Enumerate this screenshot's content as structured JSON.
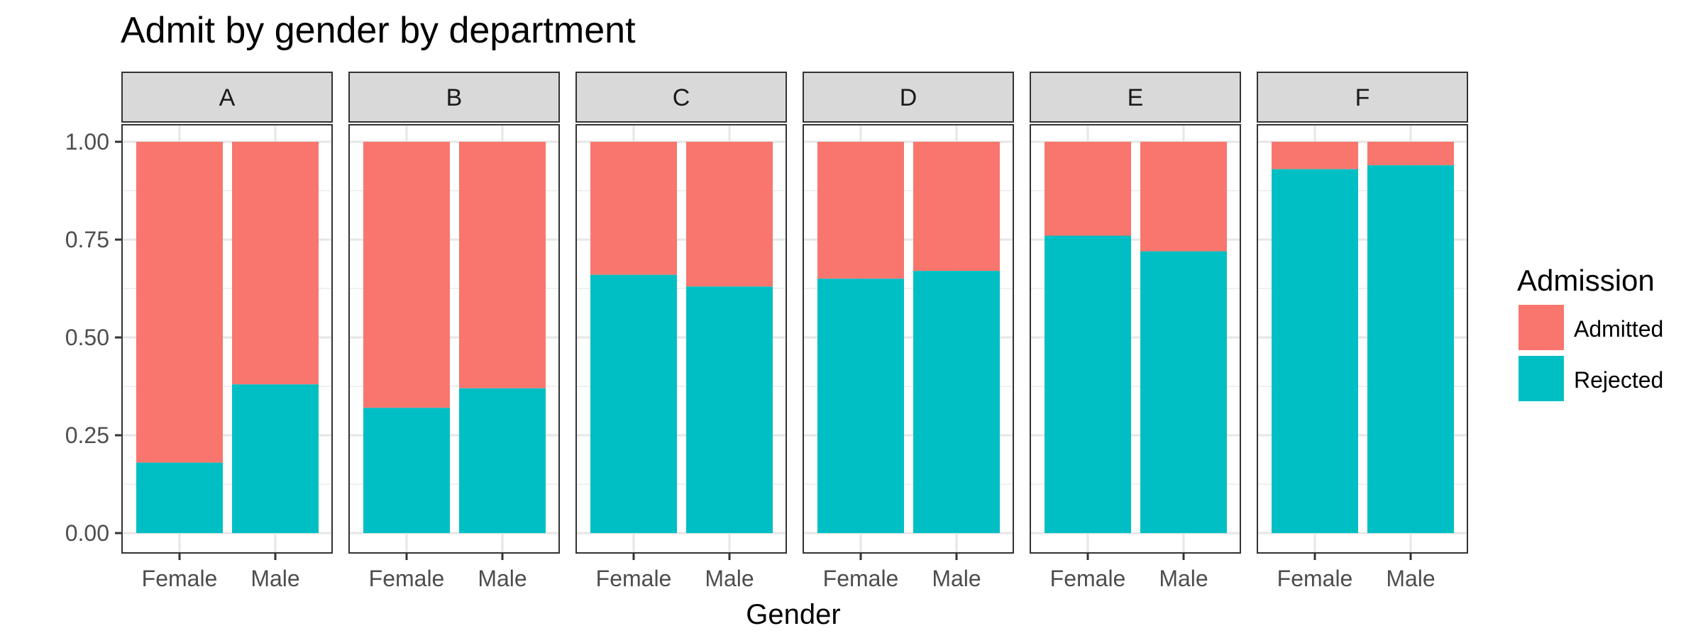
{
  "chart_data": {
    "type": "bar",
    "stacked": true,
    "title": "Admit by gender by department",
    "xlabel": "Gender",
    "ylabel": "",
    "ylim": [
      0,
      1
    ],
    "yticks": [
      "0.00",
      "0.25",
      "0.50",
      "0.75",
      "1.00"
    ],
    "categories": [
      "Female",
      "Male"
    ],
    "facets": [
      {
        "label": "A",
        "rejected": [
          0.18,
          0.38
        ]
      },
      {
        "label": "B",
        "rejected": [
          0.32,
          0.37
        ]
      },
      {
        "label": "C",
        "rejected": [
          0.66,
          0.63
        ]
      },
      {
        "label": "D",
        "rejected": [
          0.65,
          0.67
        ]
      },
      {
        "label": "E",
        "rejected": [
          0.76,
          0.72
        ]
      },
      {
        "label": "F",
        "rejected": [
          0.93,
          0.94
        ]
      }
    ],
    "series": [
      {
        "name": "Admitted",
        "color": "#F8766D",
        "position": "top"
      },
      {
        "name": "Rejected",
        "color": "#00BFC4",
        "position": "bottom"
      }
    ],
    "legend": {
      "title": "Admission",
      "placement": "right"
    },
    "grid": true
  }
}
